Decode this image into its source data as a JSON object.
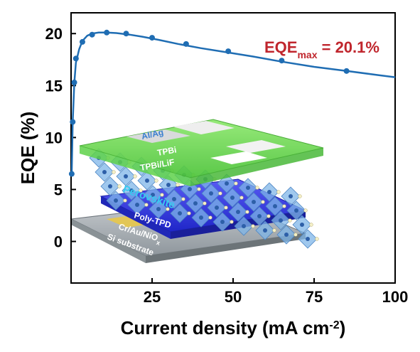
{
  "chart_data": {
    "type": "line",
    "xlabel_main": "Current density (mA cm",
    "xlabel_sup": "-2",
    "xlabel_end": ")",
    "ylabel": "EQE (%)",
    "xlim": [
      0,
      100
    ],
    "ylim": [
      -4,
      22
    ],
    "xticks": [
      25,
      50,
      75,
      100
    ],
    "xtick_labels": [
      "25",
      "50",
      "75",
      "100"
    ],
    "yticks": [
      0,
      5,
      10,
      15,
      20
    ],
    "ytick_labels": [
      "0",
      "5",
      "10",
      "15",
      "20"
    ],
    "line_color": "#1f6db3",
    "annotation": {
      "prefix": "EQE",
      "subscript": "max",
      "suffix": " = 20.1%",
      "color": "#c0262d"
    },
    "curve": {
      "x": [
        0.2,
        0.5,
        1.0,
        1.5,
        2.5,
        3.5,
        5,
        6.5,
        8.5,
        11,
        14,
        18,
        22,
        27,
        33,
        40,
        48,
        56,
        65,
        75,
        85,
        95,
        100
      ],
      "y": [
        6.5,
        11.5,
        15.3,
        17.2,
        18.5,
        19.3,
        19.8,
        20.0,
        20.1,
        20.1,
        20.05,
        19.9,
        19.7,
        19.4,
        19.0,
        18.6,
        18.2,
        17.8,
        17.3,
        16.8,
        16.4,
        16.0,
        15.8
      ]
    },
    "markers": {
      "x": [
        0.2,
        0.5,
        1.0,
        1.5,
        3.5,
        6.5,
        11,
        17,
        25,
        35.5,
        48.5,
        65,
        85
      ],
      "y": [
        6.5,
        11.5,
        15.3,
        17.6,
        19.2,
        19.9,
        20.1,
        20.0,
        19.6,
        19.0,
        18.3,
        17.4,
        16.4
      ]
    },
    "device_layers": [
      {
        "label": "Al/Ag",
        "color": "#3a7fd0"
      },
      {
        "label": "TPBi",
        "color": "#ffffff"
      },
      {
        "label": "TPBi/LiF",
        "color": "#ffffff"
      },
      {
        "label": "Perovskite",
        "color": "#38c9f0"
      },
      {
        "label": "Poly-TPD",
        "color": "#ffffff"
      },
      {
        "label": "Cr/Au/NiO",
        "sub": "x",
        "color": "#ffffff"
      },
      {
        "label": "Si substrate",
        "color": "#ffffff"
      }
    ]
  }
}
